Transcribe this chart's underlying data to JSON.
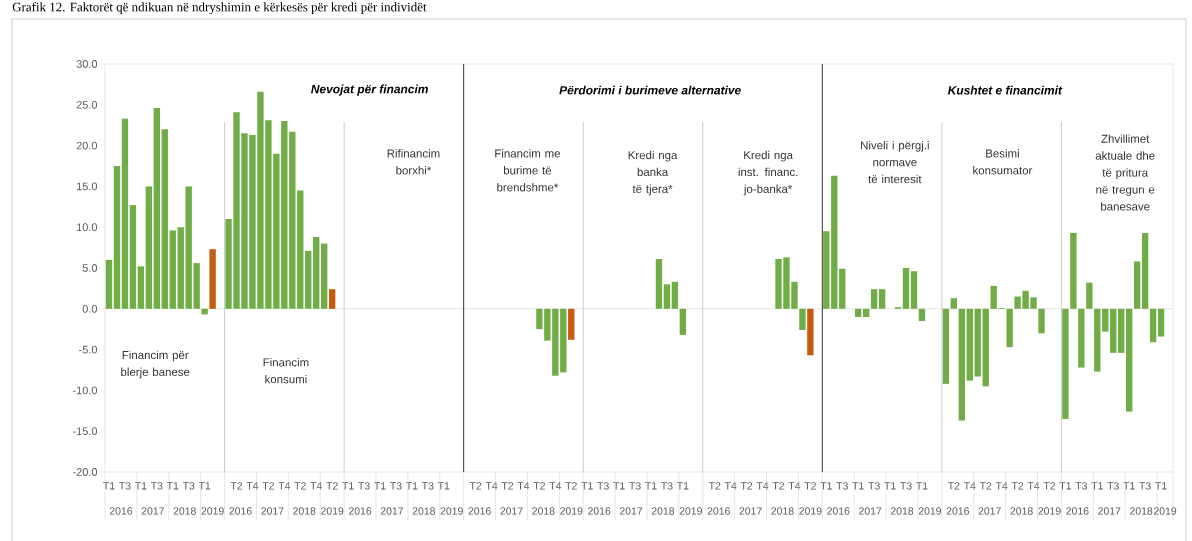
{
  "chart_data": {
    "type": "bar",
    "title": "Grafik 12. Faktorët që ndikuan në ndryshimin e kërkesës për kredi për individët",
    "categories": [
      "T1",
      null,
      "T3",
      null,
      "T1",
      null,
      "T3",
      null,
      "T1",
      null,
      "T3",
      null,
      "T1",
      null,
      null,
      null,
      "T2",
      null,
      "T4",
      null,
      "T2",
      null,
      "T4",
      null,
      "T2",
      null,
      "T4",
      null,
      "T2",
      null,
      "T1",
      null,
      "T3",
      null,
      "T1",
      null,
      "T3",
      null,
      "T1",
      null,
      "T3",
      null,
      "T1",
      null,
      null,
      null,
      "T2",
      null,
      "T4",
      null,
      "T2",
      null,
      "T4",
      null,
      "T2",
      null,
      "T4",
      null,
      "T2",
      null,
      "T1",
      null,
      "T3",
      null,
      "T1",
      null,
      "T3",
      null,
      "T1",
      null,
      "T3",
      null,
      "T1",
      null,
      null,
      null,
      "T2",
      null,
      "T4",
      null,
      "T2",
      null,
      "T4",
      null,
      "T2",
      null,
      "T4",
      null,
      "T2",
      null,
      "T1",
      null,
      "T3",
      null,
      "T1",
      null,
      "T3",
      null,
      "T1",
      null,
      "T3",
      null,
      "T1",
      null,
      null,
      null,
      "T2",
      null,
      "T4",
      null,
      "T2",
      null,
      "T4",
      null,
      "T2",
      null,
      "T4",
      null,
      "T2",
      null,
      "T1",
      null,
      "T3",
      null,
      "T1",
      null,
      "T3",
      null,
      "T1",
      null,
      "T3",
      null,
      "T1",
      null
    ],
    "series": [
      {
        "values": [
          6.0,
          17.5,
          23.3,
          12.7,
          5.2,
          15.0,
          24.6,
          22.0,
          9.6,
          10.0,
          15.0,
          5.6,
          -0.7,
          7.3,
          null,
          11.0,
          24.1,
          21.5,
          21.3,
          26.6,
          23.1,
          19.0,
          23.0,
          21.7,
          14.5,
          7.1,
          8.8,
          8.0,
          2.4,
          null,
          null,
          null,
          null,
          null,
          null,
          null,
          null,
          null,
          null,
          null,
          null,
          null,
          null,
          null,
          null,
          null,
          null,
          null,
          null,
          null,
          null,
          null,
          null,
          null,
          -2.5,
          -3.9,
          -8.2,
          -7.8,
          -3.8,
          null,
          null,
          null,
          null,
          null,
          null,
          null,
          null,
          null,
          null,
          6.1,
          3.0,
          3.3,
          -3.2,
          null,
          null,
          null,
          null,
          null,
          null,
          null,
          null,
          null,
          null,
          null,
          6.1,
          6.3,
          3.3,
          -2.6,
          -5.7,
          null,
          9.5,
          16.3,
          4.9,
          null,
          -1.0,
          -1.0,
          2.4,
          2.4,
          null,
          0.2,
          5.0,
          4.6,
          -1.5,
          null,
          null,
          -9.2,
          1.3,
          -13.7,
          -8.8,
          -8.3,
          -9.5,
          2.8,
          0.1,
          -4.7,
          1.5,
          2.2,
          1.4,
          -3.0,
          null,
          null,
          -13.5,
          9.3,
          -7.2,
          3.2,
          -7.7,
          -2.8,
          -5.4,
          -5.4,
          -12.6,
          5.8,
          9.3,
          -4.1,
          -3.4,
          null
        ],
        "colors": [
          "#70ad47",
          "#70ad47",
          "#70ad47",
          "#70ad47",
          "#70ad47",
          "#70ad47",
          "#70ad47",
          "#70ad47",
          "#70ad47",
          "#70ad47",
          "#70ad47",
          "#70ad47",
          "#70ad47",
          "#c55a11",
          "#70ad47",
          "#70ad47",
          "#70ad47",
          "#70ad47",
          "#70ad47",
          "#70ad47",
          "#70ad47",
          "#70ad47",
          "#70ad47",
          "#70ad47",
          "#70ad47",
          "#70ad47",
          "#70ad47",
          "#70ad47",
          "#c55a11",
          "#70ad47",
          "#70ad47",
          "#70ad47",
          "#70ad47",
          "#70ad47",
          "#70ad47",
          "#70ad47",
          "#70ad47",
          "#70ad47",
          "#70ad47",
          "#70ad47",
          "#70ad47",
          "#70ad47",
          "#70ad47",
          "#70ad47",
          "#70ad47",
          "#70ad47",
          "#70ad47",
          "#70ad47",
          "#70ad47",
          "#70ad47",
          "#70ad47",
          "#70ad47",
          "#70ad47",
          "#70ad47",
          "#70ad47",
          "#70ad47",
          "#70ad47",
          "#70ad47",
          "#c55a11",
          "#70ad47",
          "#70ad47",
          "#70ad47",
          "#70ad47",
          "#70ad47",
          "#70ad47",
          "#70ad47",
          "#70ad47",
          "#70ad47",
          "#70ad47",
          "#70ad47",
          "#70ad47",
          "#70ad47",
          "#70ad47",
          "#70ad47",
          "#70ad47",
          "#70ad47",
          "#70ad47",
          "#70ad47",
          "#70ad47",
          "#70ad47",
          "#70ad47",
          "#70ad47",
          "#70ad47",
          "#70ad47",
          "#70ad47",
          "#70ad47",
          "#70ad47",
          "#70ad47",
          "#c55a11",
          "#70ad47",
          "#70ad47",
          "#70ad47",
          "#70ad47",
          "#70ad47",
          "#70ad47",
          "#70ad47",
          "#70ad47",
          "#70ad47",
          "#70ad47",
          "#70ad47",
          "#70ad47",
          "#70ad47",
          "#70ad47",
          "#70ad47",
          "#70ad47",
          "#70ad47",
          "#70ad47",
          "#70ad47",
          "#70ad47",
          "#70ad47",
          "#70ad47",
          "#70ad47",
          "#70ad47",
          "#70ad47",
          "#70ad47",
          "#70ad47",
          "#70ad47",
          "#70ad47",
          "#70ad47",
          "#70ad47",
          "#70ad47",
          "#70ad47",
          "#70ad47",
          "#70ad47",
          "#70ad47",
          "#70ad47",
          "#70ad47",
          "#70ad47",
          "#70ad47",
          "#70ad47",
          "#70ad47",
          "#70ad47",
          "#70ad47",
          "#70ad47"
        ]
      }
    ],
    "ylim": [
      -20,
      30
    ],
    "yticks": [
      {
        "value": -20,
        "label": "-20.0"
      },
      {
        "value": -15,
        "label": "-15.0"
      },
      {
        "value": -10,
        "label": "-10.0"
      },
      {
        "value": -5,
        "label": "-5.0"
      },
      {
        "value": 0,
        "label": "0.0"
      },
      {
        "value": 5,
        "label": "5.0"
      },
      {
        "value": 10,
        "label": "10.0"
      },
      {
        "value": 15,
        "label": "15.0"
      },
      {
        "value": 20,
        "label": "20.0"
      },
      {
        "value": 25,
        "label": "25.0"
      },
      {
        "value": 30,
        "label": "30.0"
      }
    ],
    "annotations": [
      "Nevojat për financim",
      "Përdorimi i burimeve alternative",
      "Kushtet e financimit",
      "Financim për blerje banese",
      "Financim konsumi",
      "Rifinancim borxhi*",
      "Financim me burime të brendshme*",
      "Kredi nga banka të tjera*",
      "Kredi nga inst. financ. jo-banka*",
      "Niveli i përgj.i normave të interesit",
      "Besimi konsumator",
      "Zhvillimet aktuale dhe të pritura në tregun e banesave",
      "2016",
      "2017",
      "2018",
      "2019",
      "2016",
      "2017",
      "2018",
      "2019",
      "2016",
      "2017",
      "2018",
      "2019",
      "2016",
      "2017",
      "2018",
      "2019",
      "2016",
      "2017",
      "2018",
      "2019",
      "2016",
      "2017",
      "2018",
      "2019",
      "2016",
      "2017",
      "2018",
      "2019",
      "2016",
      "2017",
      "2018",
      "2019",
      "2016",
      "2017",
      "2018",
      "2019"
    ]
  }
}
